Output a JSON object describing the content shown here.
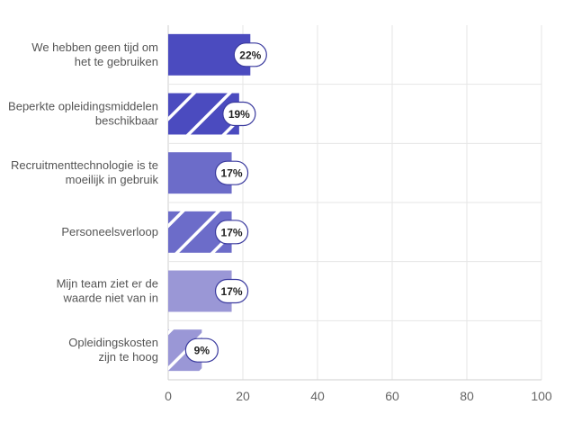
{
  "chart_data": {
    "type": "bar",
    "orientation": "horizontal",
    "title": "",
    "xlabel": "",
    "ylabel": "",
    "xlim": [
      0,
      100
    ],
    "xticks": [
      0,
      20,
      40,
      60,
      80,
      100
    ],
    "grid": true,
    "categories": [
      [
        "We hebben geen tijd om",
        "het te gebruiken"
      ],
      [
        "Beperkte opleidingsmiddelen",
        "beschikbaar"
      ],
      [
        "Recruitmenttechnologie is te",
        "moeilijk in gebruik"
      ],
      [
        "Personeelsverloop"
      ],
      [
        "Mijn team ziet er de",
        "waarde niet van in"
      ],
      [
        "Opleidingskosten",
        "zijn te hoog"
      ]
    ],
    "values": [
      22,
      19,
      17,
      17,
      17,
      9
    ],
    "value_labels": [
      "22%",
      "19%",
      "17%",
      "17%",
      "17%",
      "9%"
    ],
    "bar_colors": [
      "#4b4bbf",
      "#4b4bbf",
      "#6c6cc9",
      "#6c6cc9",
      "#9a97d6",
      "#9a97d6"
    ],
    "hatched": [
      false,
      true,
      false,
      true,
      false,
      true
    ],
    "label_border_color": "#3a3a9e"
  }
}
